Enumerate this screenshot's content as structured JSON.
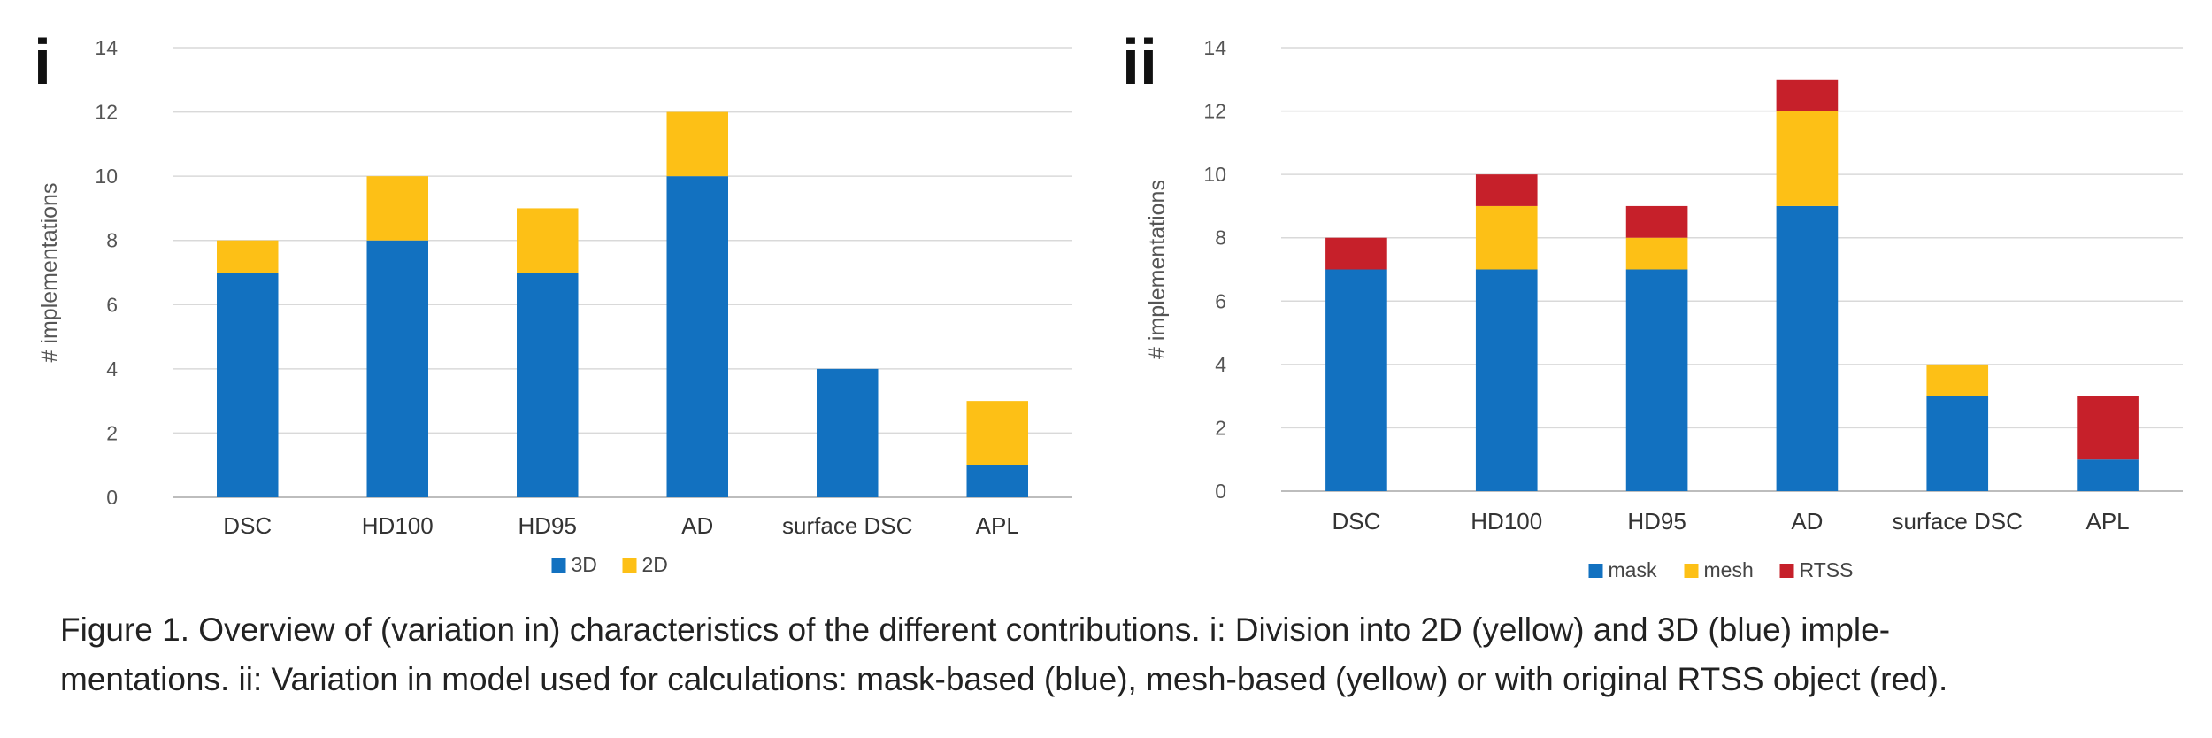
{
  "chart_data": [
    {
      "type": "bar",
      "stacked": true,
      "panel_label": "i",
      "title": "",
      "xlabel": "",
      "ylabel": "# implementations",
      "ylim": [
        0,
        14
      ],
      "yticks": [
        0,
        2,
        4,
        6,
        8,
        10,
        12,
        14
      ],
      "grid": true,
      "legend_position": "bottom-center",
      "categories": [
        "DSC",
        "HD100",
        "HD95",
        "AD",
        "surface DSC",
        "APL"
      ],
      "series": [
        {
          "name": "3D",
          "color": "#1271c0",
          "values": [
            7,
            8,
            7,
            10,
            4,
            1
          ]
        },
        {
          "name": "2D",
          "color": "#fdc016",
          "values": [
            1,
            2,
            2,
            2,
            0,
            2
          ]
        }
      ]
    },
    {
      "type": "bar",
      "stacked": true,
      "panel_label": "ii",
      "title": "",
      "xlabel": "",
      "ylabel": "# implementations",
      "ylim": [
        0,
        14
      ],
      "yticks": [
        0,
        2,
        4,
        6,
        8,
        10,
        12,
        14
      ],
      "grid": true,
      "legend_position": "bottom-center",
      "categories": [
        "DSC",
        "HD100",
        "HD95",
        "AD",
        "surface DSC",
        "APL"
      ],
      "series": [
        {
          "name": "mask",
          "color": "#1271c0",
          "values": [
            7,
            7,
            7,
            9,
            3,
            1
          ]
        },
        {
          "name": "mesh",
          "color": "#fdc016",
          "values": [
            0,
            2,
            1,
            3,
            1,
            0
          ]
        },
        {
          "name": "RTSS",
          "color": "#c6202a",
          "values": [
            1,
            1,
            1,
            1,
            0,
            2
          ]
        }
      ]
    }
  ],
  "caption": {
    "line1": "Figure 1. Overview of (variation in) characteristics of the different contributions. i: Division into 2D (yellow) and 3D (blue) imple-",
    "line2": "mentations. ii: Variation in model used for calculations: mask-based (blue), mesh-based (yellow) or with original RTSS object (red)."
  }
}
